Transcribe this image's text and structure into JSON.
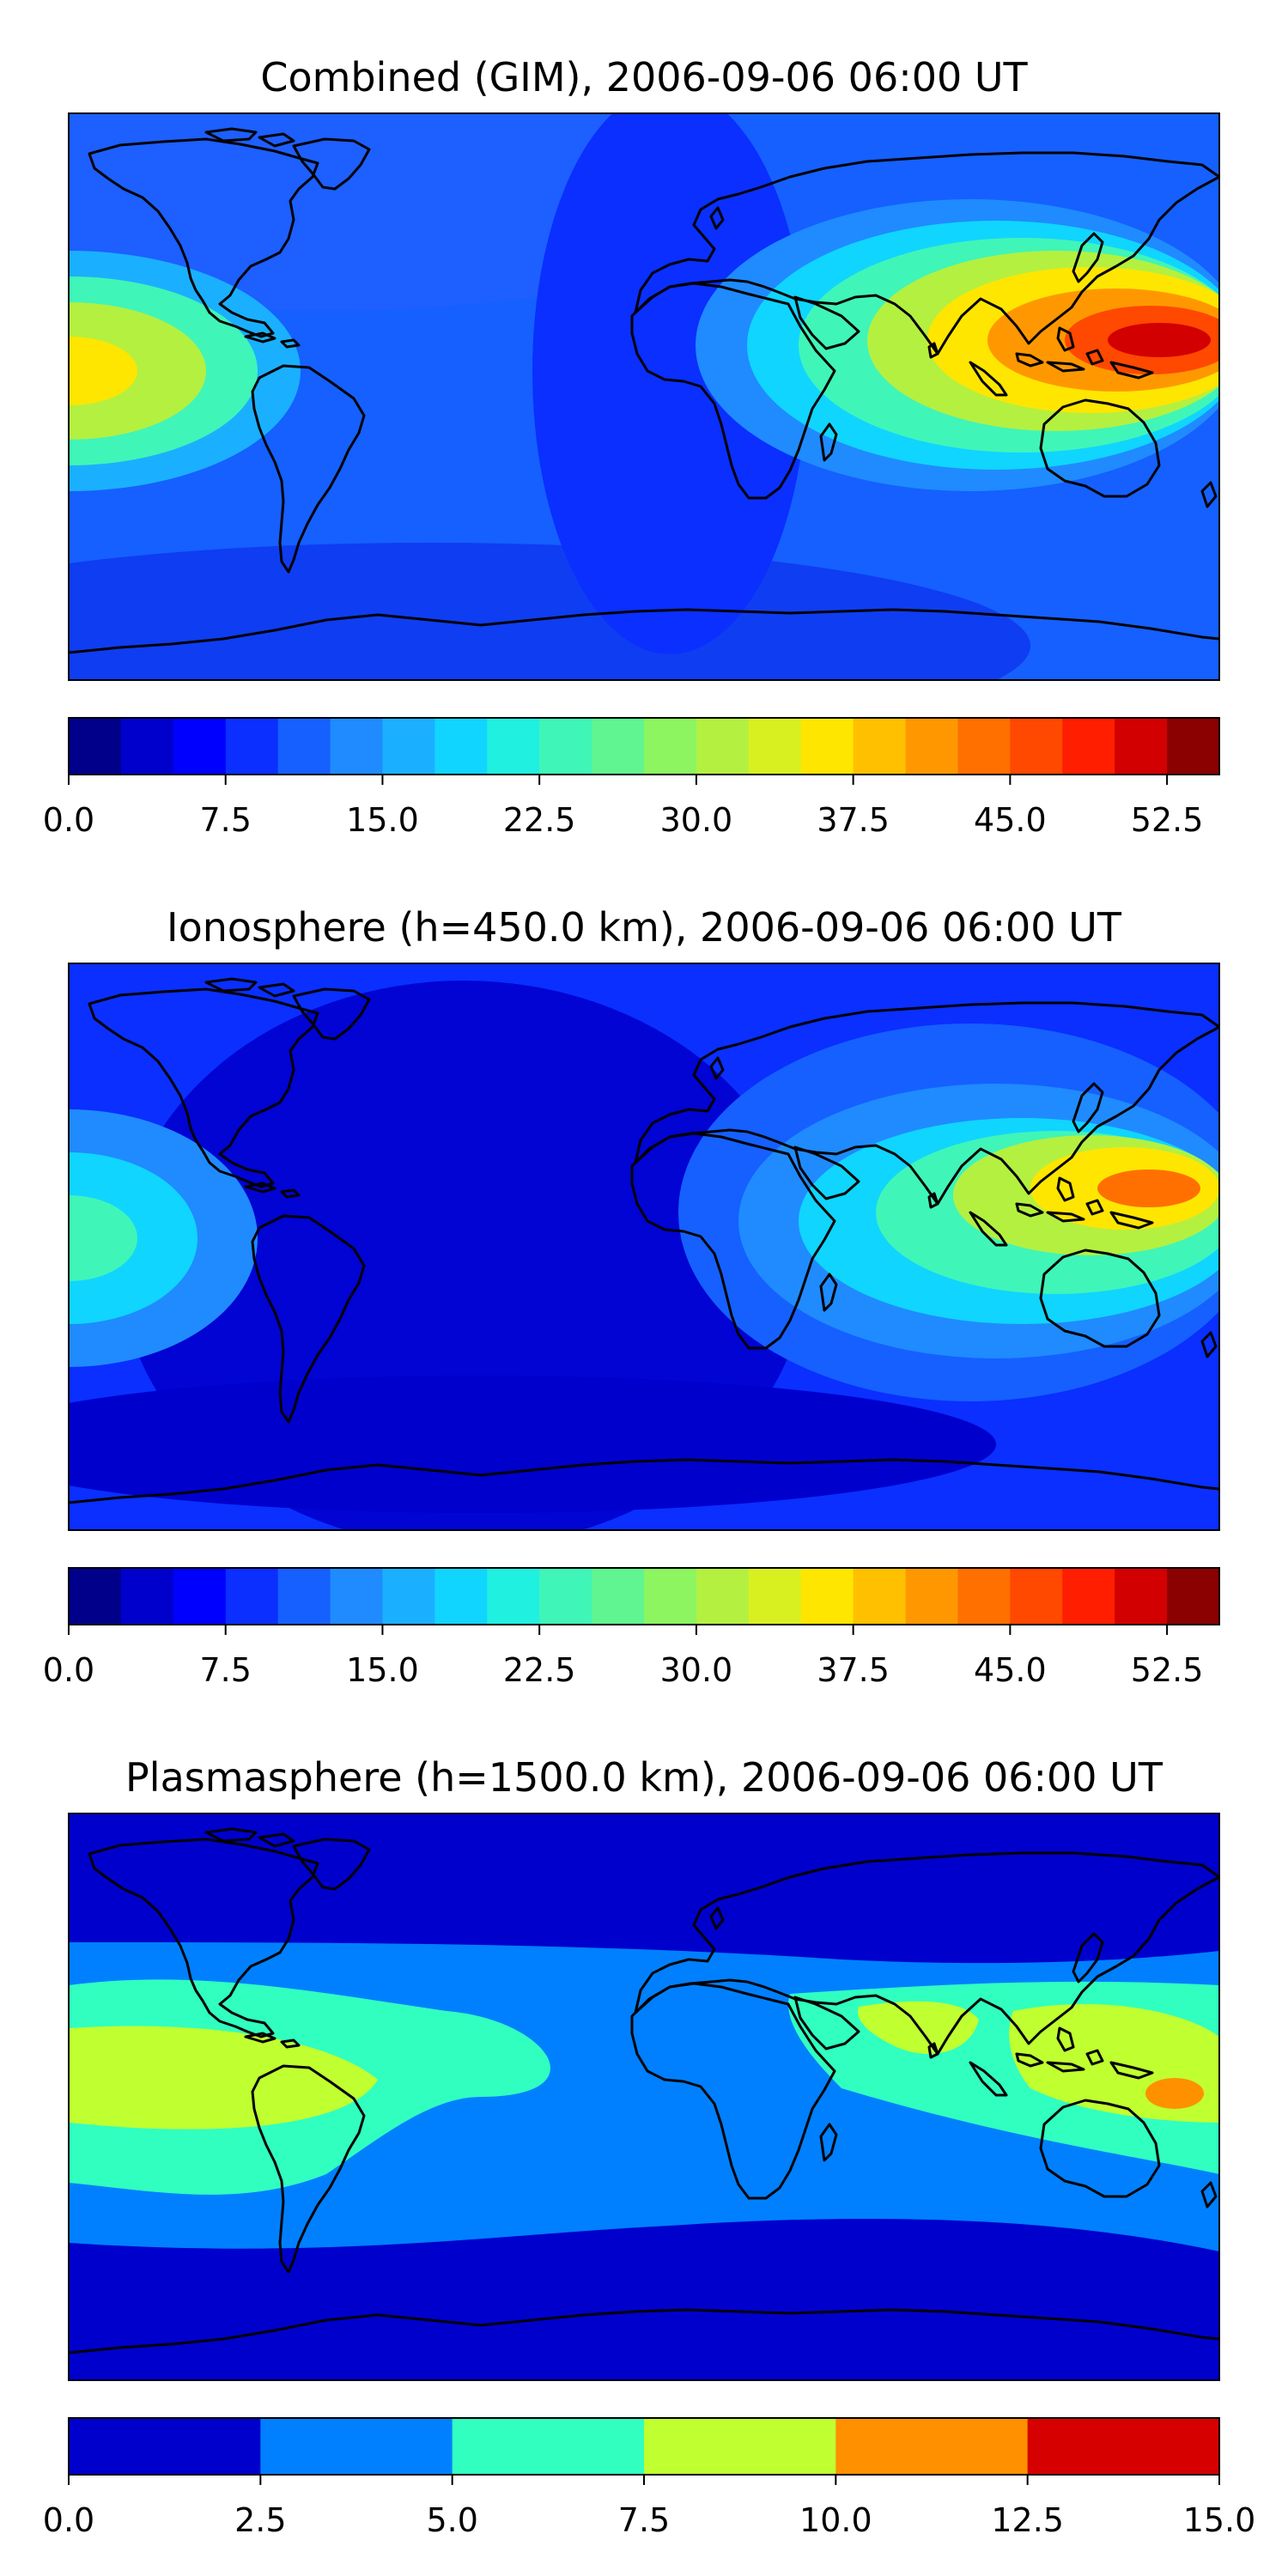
{
  "panels": [
    {
      "title": "Combined (GIM), 2006-09-06 06:00 UT",
      "colorbar": {
        "ticks": [
          "0.0",
          "7.5",
          "15.0",
          "22.5",
          "30.0",
          "37.5",
          "45.0",
          "52.5"
        ],
        "tick_values": [
          0,
          7.5,
          15,
          22.5,
          30,
          37.5,
          45,
          52.5
        ],
        "range": [
          0,
          55
        ],
        "levels": 22
      }
    },
    {
      "title": "Ionosphere  (h=450.0 km), 2006-09-06 06:00 UT",
      "colorbar": {
        "ticks": [
          "0.0",
          "7.5",
          "15.0",
          "22.5",
          "30.0",
          "37.5",
          "45.0",
          "52.5"
        ],
        "tick_values": [
          0,
          7.5,
          15,
          22.5,
          30,
          37.5,
          45,
          52.5
        ],
        "range": [
          0,
          55
        ],
        "levels": 22
      }
    },
    {
      "title": "Plasmasphere (h=1500.0 km), 2006-09-06 06:00 UT",
      "colorbar": {
        "ticks": [
          "0.0",
          "2.5",
          "5.0",
          "7.5",
          "10.0",
          "12.5",
          "15.0"
        ],
        "tick_values": [
          0,
          2.5,
          5,
          7.5,
          10,
          12.5,
          15
        ],
        "range": [
          0,
          15
        ],
        "levels": 6
      }
    }
  ],
  "colors": {
    "continuous_scale": [
      "#00008b",
      "#0000cd",
      "#0000ff",
      "#0a2fff",
      "#1560ff",
      "#1f8bff",
      "#1ab0ff",
      "#10d5ff",
      "#20f0e0",
      "#40f5b8",
      "#60f590",
      "#8cf560",
      "#b4f040",
      "#d8f020",
      "#ffe600",
      "#ffc000",
      "#ff9800",
      "#ff7000",
      "#ff4800",
      "#ff1e00",
      "#d20000",
      "#8b0000"
    ],
    "plasma_scale": [
      "#0000cd",
      "#0080ff",
      "#30ffc0",
      "#c0ff30",
      "#ff9000",
      "#d60000"
    ],
    "coastline": "#000000"
  }
}
